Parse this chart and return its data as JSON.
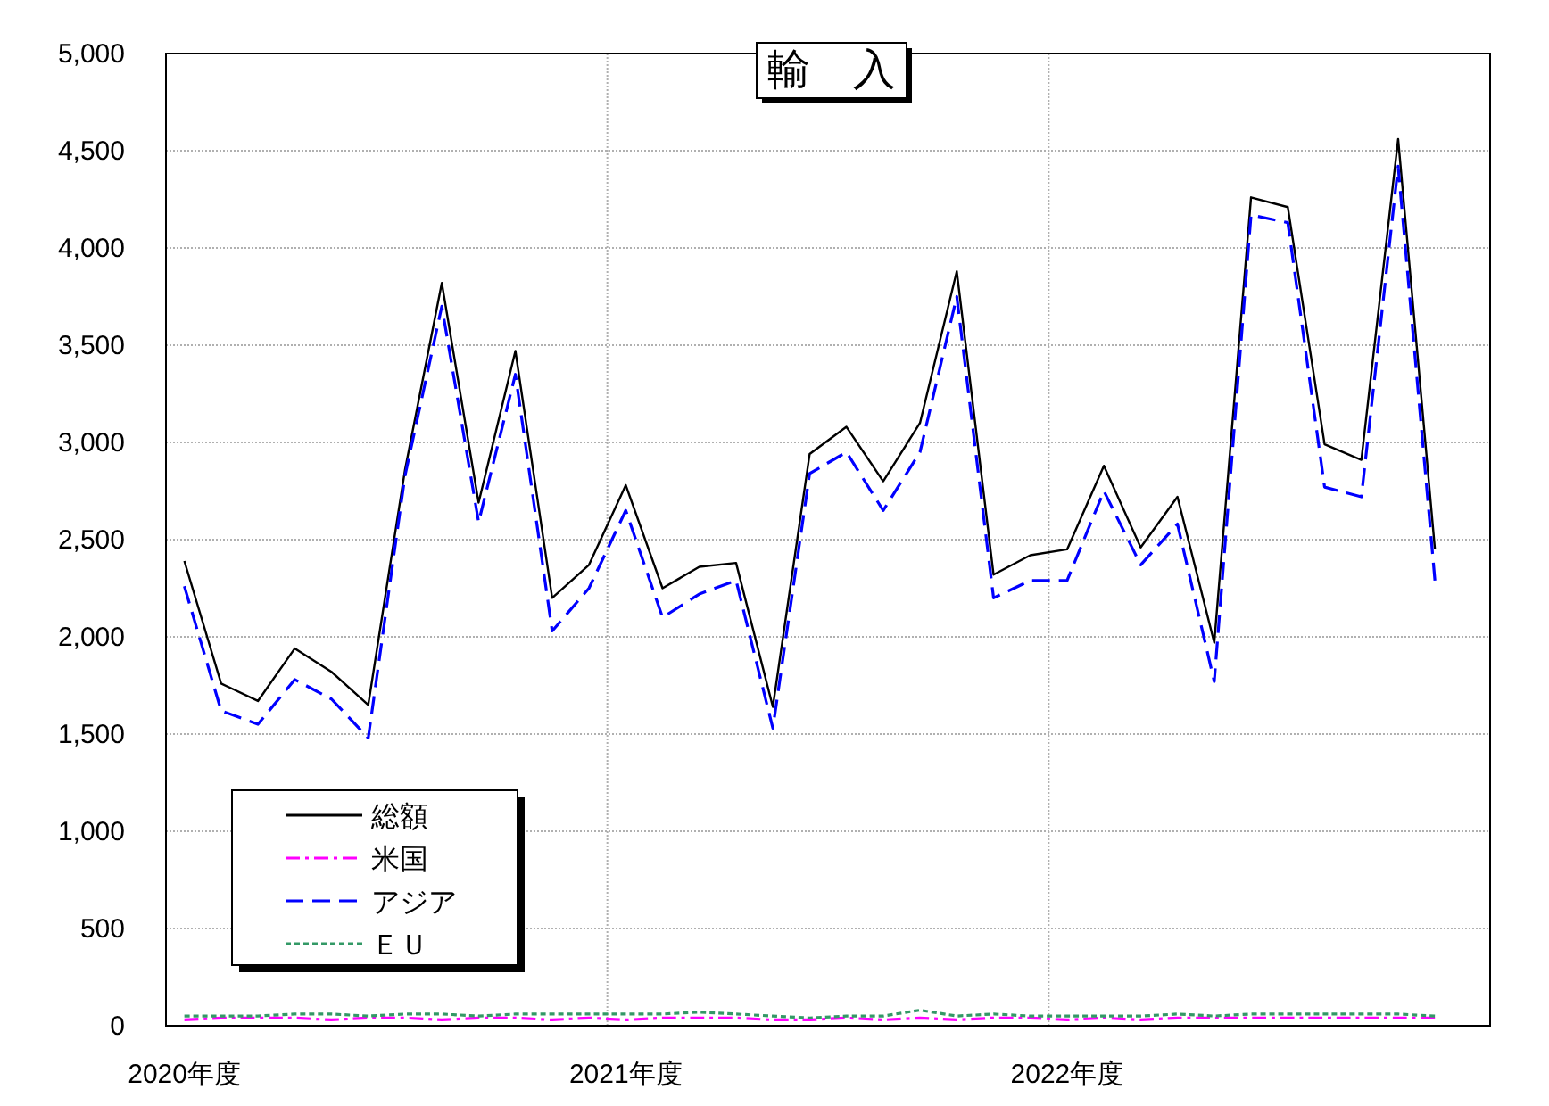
{
  "chart_data": {
    "type": "line",
    "title": "輸　入",
    "categories": [
      "2020年度",
      null,
      null,
      null,
      null,
      null,
      null,
      null,
      null,
      null,
      null,
      null,
      "2021年度",
      null,
      null,
      null,
      null,
      null,
      null,
      null,
      null,
      null,
      null,
      null,
      "2022年度",
      null,
      null,
      null,
      null,
      null,
      null,
      null,
      null,
      null,
      null,
      null
    ],
    "series": [
      {
        "name": "総額",
        "color": "#000000",
        "line_style": "solid",
        "values": [
          2390,
          1760,
          1670,
          1940,
          1820,
          1650,
          2860,
          3820,
          2690,
          3470,
          2200,
          2370,
          2780,
          2250,
          2360,
          2380,
          1640,
          2940,
          3080,
          2800,
          3100,
          3880,
          2320,
          2420,
          2450,
          2880,
          2460,
          2720,
          1970,
          4260,
          4210,
          2990,
          2910,
          4560,
          2450,
          null
        ]
      },
      {
        "name": "米国",
        "color": "#ff00ff",
        "line_style": "dashdot",
        "values": [
          30,
          40,
          40,
          40,
          30,
          40,
          40,
          30,
          40,
          40,
          30,
          40,
          30,
          40,
          40,
          40,
          30,
          30,
          40,
          30,
          40,
          30,
          40,
          40,
          30,
          40,
          30,
          40,
          40,
          40,
          40,
          40,
          40,
          40,
          40,
          null
        ]
      },
      {
        "name": "アジア",
        "color": "#0000ff",
        "line_style": "dashed",
        "values": [
          2260,
          1620,
          1550,
          1780,
          1680,
          1480,
          2830,
          3700,
          2590,
          3350,
          2030,
          2250,
          2650,
          2100,
          2220,
          2290,
          1530,
          2840,
          2950,
          2650,
          2950,
          3750,
          2200,
          2290,
          2290,
          2750,
          2370,
          2580,
          1770,
          4170,
          4130,
          2770,
          2720,
          4420,
          2290,
          null
        ]
      },
      {
        "name": "ＥＵ",
        "color": "#339966",
        "line_style": "dotted",
        "values": [
          50,
          50,
          50,
          60,
          60,
          50,
          60,
          60,
          50,
          60,
          60,
          60,
          60,
          60,
          70,
          60,
          50,
          40,
          50,
          50,
          80,
          50,
          60,
          50,
          50,
          50,
          50,
          60,
          50,
          60,
          60,
          60,
          60,
          60,
          50,
          null
        ]
      }
    ],
    "ylim": [
      0,
      5000
    ],
    "yticks": [
      {
        "value": 0,
        "label": "0"
      },
      {
        "value": 500,
        "label": "500"
      },
      {
        "value": 1000,
        "label": "1,000"
      },
      {
        "value": 1500,
        "label": "1,500"
      },
      {
        "value": 2000,
        "label": "2,000"
      },
      {
        "value": 2500,
        "label": "2,500"
      },
      {
        "value": 3000,
        "label": "3,000"
      },
      {
        "value": 3500,
        "label": "3,500"
      },
      {
        "value": 4000,
        "label": "4,000"
      },
      {
        "value": 4500,
        "label": "4,500"
      },
      {
        "value": 5000,
        "label": "5,000"
      }
    ],
    "grid": true,
    "legend": "bottom left",
    "marker": "none"
  }
}
